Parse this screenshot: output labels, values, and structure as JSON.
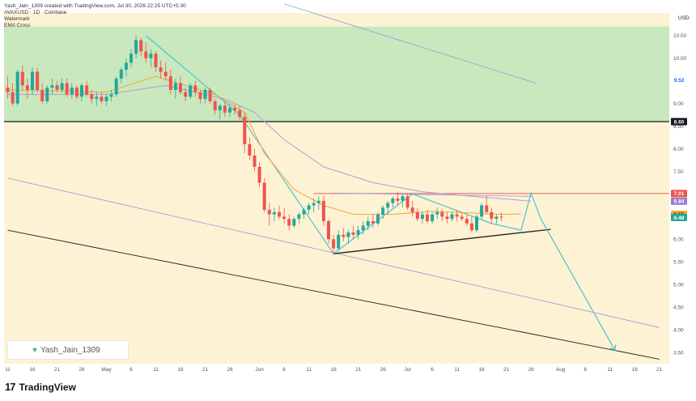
{
  "header": {
    "author_line": "Yash_Jain_1309 created with TradingView.com, Jul 30, 2026 22:25 UTC+5:30",
    "symbol_line": "AVAXUSD · 1D · Coinbase",
    "indicator_1": "Watermark",
    "indicator_2": "EMA Cross"
  },
  "currency": "USD",
  "watermark_text": "Yash_Jain_1309",
  "footer_brand": "TradingView",
  "footer_logo": "17",
  "colors": {
    "background": "#fdf2d3",
    "resistance_zone": "#c9e8bd",
    "bull": "#26a69a",
    "bear": "#ef5350",
    "ema_fast": "#f0a830",
    "ema_slow": "#b59bd3",
    "trendline_blue": "#8e9ae0",
    "trendline_black": "#222222",
    "projection": "#3fc0cf",
    "resistance_line": "#e06060"
  },
  "chart_data": {
    "type": "candlestick",
    "title": "AVAXUSD · 1D · Coinbase",
    "ylim": [
      3.25,
      11.0
    ],
    "y_ticks": [
      "10.50",
      "10.00",
      "9.50",
      "9.00",
      "8.50",
      "8.00",
      "7.50",
      "7.00",
      "6.50",
      "6.00",
      "5.50",
      "5.00",
      "4.50",
      "4.00",
      "3.50"
    ],
    "x_ticks": [
      {
        "label": "11",
        "day": 0
      },
      {
        "label": "16",
        "day": 5
      },
      {
        "label": "21",
        "day": 10
      },
      {
        "label": "26",
        "day": 15
      },
      {
        "label": "May",
        "day": 20
      },
      {
        "label": "6",
        "day": 25
      },
      {
        "label": "11",
        "day": 30
      },
      {
        "label": "16",
        "day": 35
      },
      {
        "label": "21",
        "day": 40
      },
      {
        "label": "26",
        "day": 45
      },
      {
        "label": "Jun",
        "day": 51
      },
      {
        "label": "6",
        "day": 56
      },
      {
        "label": "11",
        "day": 61
      },
      {
        "label": "16",
        "day": 66
      },
      {
        "label": "21",
        "day": 71
      },
      {
        "label": "26",
        "day": 76
      },
      {
        "label": "Jul",
        "day": 81
      },
      {
        "label": "6",
        "day": 86
      },
      {
        "label": "11",
        "day": 91
      },
      {
        "label": "16",
        "day": 96
      },
      {
        "label": "21",
        "day": 101
      },
      {
        "label": "26",
        "day": 106
      },
      {
        "label": "Aug",
        "day": 112
      },
      {
        "label": "6",
        "day": 117
      },
      {
        "label": "11",
        "day": 122
      },
      {
        "label": "16",
        "day": 127
      },
      {
        "label": "21",
        "day": 132
      }
    ],
    "price_labels": [
      {
        "text": "9.52",
        "value": 9.52,
        "bg": "#ffffff",
        "fg": "#2962ff"
      },
      {
        "text": "8.60",
        "value": 8.6,
        "bg": "#131722",
        "fg": "#ffffff"
      },
      {
        "text": "7.01",
        "value": 7.01,
        "bg": "#ef5350",
        "fg": "#ffffff"
      },
      {
        "text": "6.84",
        "value": 6.84,
        "bg": "#9c7cc9",
        "fg": "#ffffff"
      },
      {
        "text": "6.55",
        "value": 6.55,
        "bg": "#f0a830",
        "fg": "#131722"
      },
      {
        "text": "6.48",
        "value": 6.48,
        "bg": "#26a69a",
        "fg": "#ffffff"
      }
    ],
    "resistance_zone": [
      8.6,
      10.7
    ],
    "horizontal_line": 8.6,
    "resistance_level": {
      "value": 7.01,
      "from_day": 62,
      "to_day": 136
    },
    "candles": [
      [
        9.35,
        9.6,
        9.1,
        9.25
      ],
      [
        9.25,
        9.45,
        8.95,
        9.0
      ],
      [
        9.0,
        9.75,
        8.95,
        9.7
      ],
      [
        9.7,
        9.85,
        9.3,
        9.4
      ],
      [
        9.4,
        9.55,
        9.1,
        9.3
      ],
      [
        9.3,
        9.8,
        9.2,
        9.7
      ],
      [
        9.7,
        9.78,
        9.25,
        9.3
      ],
      [
        9.3,
        9.45,
        9.0,
        9.05
      ],
      [
        9.05,
        9.4,
        9.0,
        9.35
      ],
      [
        9.35,
        9.55,
        9.2,
        9.4
      ],
      [
        9.4,
        9.5,
        9.25,
        9.3
      ],
      [
        9.3,
        9.55,
        9.25,
        9.45
      ],
      [
        9.45,
        9.55,
        9.15,
        9.2
      ],
      [
        9.2,
        9.45,
        9.1,
        9.35
      ],
      [
        9.35,
        9.4,
        9.1,
        9.15
      ],
      [
        9.15,
        9.45,
        9.05,
        9.4
      ],
      [
        9.4,
        9.5,
        9.15,
        9.2
      ],
      [
        9.2,
        9.3,
        9.0,
        9.1
      ],
      [
        9.1,
        9.25,
        8.95,
        9.15
      ],
      [
        9.15,
        9.25,
        9.0,
        9.05
      ],
      [
        9.05,
        9.2,
        8.95,
        9.15
      ],
      [
        9.15,
        9.3,
        9.05,
        9.2
      ],
      [
        9.2,
        9.6,
        9.15,
        9.55
      ],
      [
        9.55,
        9.8,
        9.45,
        9.75
      ],
      [
        9.75,
        10.0,
        9.6,
        9.9
      ],
      [
        9.9,
        10.2,
        9.8,
        10.1
      ],
      [
        10.1,
        10.5,
        10.0,
        10.4
      ],
      [
        10.4,
        10.45,
        10.05,
        10.15
      ],
      [
        10.15,
        10.35,
        9.9,
        10.0
      ],
      [
        10.0,
        10.2,
        9.8,
        10.1
      ],
      [
        10.1,
        10.15,
        9.7,
        9.8
      ],
      [
        9.8,
        9.95,
        9.55,
        9.7
      ],
      [
        9.7,
        9.9,
        9.5,
        9.6
      ],
      [
        9.6,
        9.75,
        9.2,
        9.3
      ],
      [
        9.3,
        9.55,
        9.1,
        9.45
      ],
      [
        9.45,
        9.6,
        9.2,
        9.25
      ],
      [
        9.25,
        9.35,
        9.05,
        9.15
      ],
      [
        9.15,
        9.45,
        9.1,
        9.4
      ],
      [
        9.4,
        9.5,
        9.15,
        9.25
      ],
      [
        9.25,
        9.3,
        9.0,
        9.1
      ],
      [
        9.1,
        9.35,
        9.0,
        9.3
      ],
      [
        9.3,
        9.35,
        9.0,
        9.05
      ],
      [
        9.05,
        9.1,
        8.75,
        8.85
      ],
      [
        8.85,
        9.0,
        8.65,
        8.95
      ],
      [
        8.95,
        9.05,
        8.7,
        8.8
      ],
      [
        8.8,
        9.0,
        8.7,
        8.9
      ],
      [
        8.9,
        9.0,
        8.75,
        8.85
      ],
      [
        8.85,
        8.95,
        8.6,
        8.7
      ],
      [
        8.7,
        8.8,
        7.9,
        8.1
      ],
      [
        8.1,
        8.25,
        7.75,
        7.85
      ],
      [
        7.85,
        8.0,
        7.5,
        7.6
      ],
      [
        7.6,
        7.7,
        7.15,
        7.25
      ],
      [
        7.25,
        7.35,
        6.6,
        6.65
      ],
      [
        6.65,
        6.8,
        6.3,
        6.55
      ],
      [
        6.55,
        6.7,
        6.4,
        6.6
      ],
      [
        6.6,
        6.75,
        6.45,
        6.5
      ],
      [
        6.5,
        6.7,
        6.35,
        6.45
      ],
      [
        6.45,
        6.55,
        6.2,
        6.3
      ],
      [
        6.3,
        6.5,
        6.25,
        6.45
      ],
      [
        6.45,
        6.6,
        6.35,
        6.55
      ],
      [
        6.55,
        6.7,
        6.45,
        6.65
      ],
      [
        6.65,
        6.8,
        6.55,
        6.75
      ],
      [
        6.75,
        6.9,
        6.6,
        6.8
      ],
      [
        6.8,
        6.95,
        6.65,
        6.85
      ],
      [
        6.85,
        6.95,
        6.3,
        6.4
      ],
      [
        6.4,
        6.45,
        5.9,
        6.0
      ],
      [
        6.0,
        6.1,
        5.65,
        5.8
      ],
      [
        5.8,
        6.2,
        5.75,
        6.1
      ],
      [
        6.1,
        6.25,
        5.95,
        6.05
      ],
      [
        6.05,
        6.2,
        5.9,
        6.15
      ],
      [
        6.15,
        6.3,
        6.0,
        6.1
      ],
      [
        6.1,
        6.3,
        6.0,
        6.2
      ],
      [
        6.2,
        6.4,
        6.1,
        6.3
      ],
      [
        6.3,
        6.5,
        6.2,
        6.4
      ],
      [
        6.4,
        6.55,
        6.25,
        6.35
      ],
      [
        6.35,
        6.6,
        6.3,
        6.55
      ],
      [
        6.55,
        6.75,
        6.45,
        6.7
      ],
      [
        6.7,
        6.85,
        6.55,
        6.8
      ],
      [
        6.8,
        6.95,
        6.7,
        6.9
      ],
      [
        6.9,
        7.05,
        6.75,
        6.85
      ],
      [
        6.85,
        7.0,
        6.7,
        6.95
      ],
      [
        6.95,
        7.0,
        6.65,
        6.7
      ],
      [
        6.7,
        6.85,
        6.5,
        6.6
      ],
      [
        6.6,
        6.7,
        6.4,
        6.45
      ],
      [
        6.45,
        6.6,
        6.35,
        6.55
      ],
      [
        6.55,
        6.65,
        6.35,
        6.4
      ],
      [
        6.4,
        6.6,
        6.35,
        6.55
      ],
      [
        6.55,
        6.7,
        6.45,
        6.6
      ],
      [
        6.6,
        6.65,
        6.4,
        6.5
      ],
      [
        6.5,
        6.6,
        6.35,
        6.45
      ],
      [
        6.45,
        6.6,
        6.4,
        6.55
      ],
      [
        6.55,
        6.65,
        6.4,
        6.5
      ],
      [
        6.5,
        6.6,
        6.4,
        6.45
      ],
      [
        6.45,
        6.55,
        6.3,
        6.35
      ],
      [
        6.35,
        6.5,
        6.15,
        6.2
      ],
      [
        6.2,
        6.55,
        6.15,
        6.5
      ],
      [
        6.5,
        6.8,
        6.45,
        6.75
      ],
      [
        6.75,
        6.95,
        6.55,
        6.6
      ],
      [
        6.6,
        6.7,
        6.35,
        6.45
      ],
      [
        6.45,
        6.55,
        6.35,
        6.5
      ],
      [
        6.5,
        6.6,
        6.4,
        6.48
      ]
    ],
    "ema_fast": [
      [
        0,
        9.3
      ],
      [
        20,
        9.25
      ],
      [
        30,
        9.6
      ],
      [
        42,
        9.2
      ],
      [
        48,
        8.8
      ],
      [
        52,
        7.9
      ],
      [
        58,
        7.1
      ],
      [
        64,
        6.75
      ],
      [
        70,
        6.55
      ],
      [
        78,
        6.55
      ],
      [
        86,
        6.62
      ],
      [
        94,
        6.58
      ],
      [
        100,
        6.55
      ],
      [
        104,
        6.56
      ]
    ],
    "ema_slow": [
      [
        0,
        9.2
      ],
      [
        20,
        9.2
      ],
      [
        32,
        9.4
      ],
      [
        44,
        9.1
      ],
      [
        50,
        8.8
      ],
      [
        56,
        8.2
      ],
      [
        64,
        7.6
      ],
      [
        74,
        7.25
      ],
      [
        84,
        7.05
      ],
      [
        94,
        6.95
      ],
      [
        102,
        6.88
      ],
      [
        106,
        6.84
      ]
    ],
    "drawings": {
      "descending_trendline": [
        [
          56,
          11.2
        ],
        [
          107,
          9.45
        ]
      ],
      "channel_upper": [
        [
          0,
          7.35
        ],
        [
          132,
          4.05
        ]
      ],
      "channel_lower": [
        [
          0,
          6.2
        ],
        [
          132,
          3.35
        ]
      ],
      "triangle_support": [
        [
          66,
          5.68
        ],
        [
          110,
          6.22
        ]
      ],
      "triangle_resistance": [
        [
          66,
          7.02
        ],
        [
          106,
          6.95
        ]
      ],
      "projection_path": [
        [
          28,
          10.5
        ],
        [
          47,
          8.75
        ],
        [
          66,
          5.68
        ],
        [
          82,
          7.0
        ],
        [
          98,
          6.35
        ],
        [
          104,
          6.2
        ],
        [
          106,
          7.02
        ],
        [
          108,
          6.45
        ],
        [
          123,
          3.55
        ]
      ]
    }
  }
}
